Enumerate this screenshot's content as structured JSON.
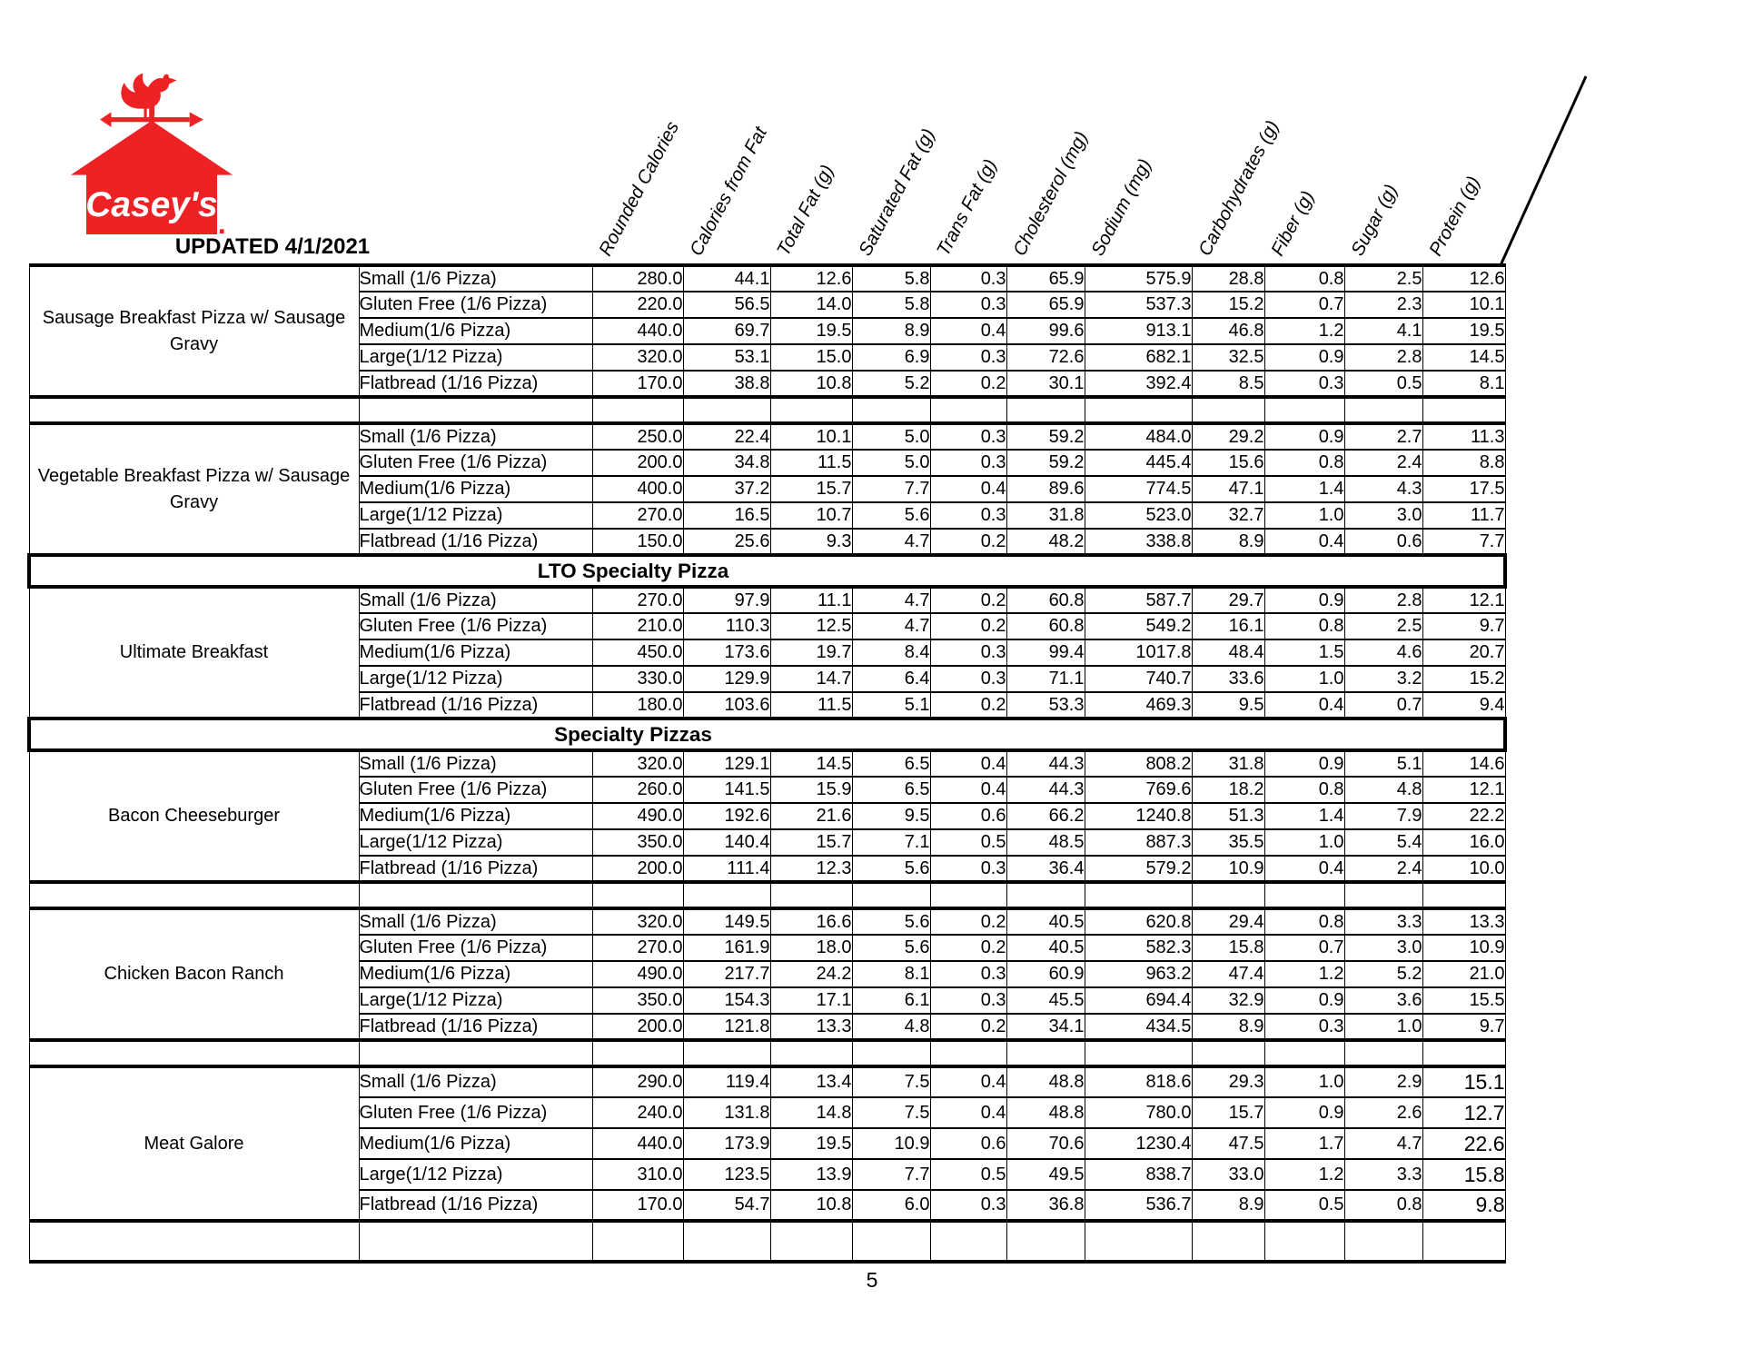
{
  "brand": {
    "name": "Casey's",
    "wordmark": "Casey's",
    "logo_color": "#EE2224"
  },
  "header": {
    "updated_label": "UPDATED 4/1/2021"
  },
  "footer": {
    "page_number": "5"
  },
  "table": {
    "columns": [
      "Rounded Calories",
      "Calories from Fat",
      "Total Fat (g)",
      "Saturated Fat (g)",
      "Trans Fat (g)",
      "Cholesterol (mg)",
      "Sodium (mg)",
      "Carbohydrates (g)",
      "Fiber (g)",
      "Sugar (g)",
      "Protein (g)"
    ],
    "sections": [
      {
        "type": "group",
        "name": "Sausage Breakfast Pizza w/ Sausage Gravy",
        "rows": [
          {
            "label": "Small (1/6 Pizza)",
            "values": [
              "280.0",
              "44.1",
              "12.6",
              "5.8",
              "0.3",
              "65.9",
              "575.9",
              "28.8",
              "0.8",
              "2.5",
              "12.6"
            ]
          },
          {
            "label": "Gluten Free (1/6 Pizza)",
            "values": [
              "220.0",
              "56.5",
              "14.0",
              "5.8",
              "0.3",
              "65.9",
              "537.3",
              "15.2",
              "0.7",
              "2.3",
              "10.1"
            ]
          },
          {
            "label": "Medium(1/6 Pizza)",
            "values": [
              "440.0",
              "69.7",
              "19.5",
              "8.9",
              "0.4",
              "99.6",
              "913.1",
              "46.8",
              "1.2",
              "4.1",
              "19.5"
            ]
          },
          {
            "label": "Large(1/12 Pizza)",
            "values": [
              "320.0",
              "53.1",
              "15.0",
              "6.9",
              "0.3",
              "72.6",
              "682.1",
              "32.5",
              "0.9",
              "2.8",
              "14.5"
            ]
          },
          {
            "label": "Flatbread (1/16 Pizza)",
            "values": [
              "170.0",
              "38.8",
              "10.8",
              "5.2",
              "0.2",
              "30.1",
              "392.4",
              "8.5",
              "0.3",
              "0.5",
              "8.1"
            ]
          }
        ]
      },
      {
        "type": "spacer"
      },
      {
        "type": "group",
        "name": "Vegetable Breakfast Pizza w/ Sausage Gravy",
        "rows": [
          {
            "label": "Small (1/6 Pizza)",
            "values": [
              "250.0",
              "22.4",
              "10.1",
              "5.0",
              "0.3",
              "59.2",
              "484.0",
              "29.2",
              "0.9",
              "2.7",
              "11.3"
            ]
          },
          {
            "label": "Gluten Free (1/6 Pizza)",
            "values": [
              "200.0",
              "34.8",
              "11.5",
              "5.0",
              "0.3",
              "59.2",
              "445.4",
              "15.6",
              "0.8",
              "2.4",
              "8.8"
            ]
          },
          {
            "label": "Medium(1/6 Pizza)",
            "values": [
              "400.0",
              "37.2",
              "15.7",
              "7.7",
              "0.4",
              "89.6",
              "774.5",
              "47.1",
              "1.4",
              "4.3",
              "17.5"
            ]
          },
          {
            "label": "Large(1/12 Pizza)",
            "values": [
              "270.0",
              "16.5",
              "10.7",
              "5.6",
              "0.3",
              "31.8",
              "523.0",
              "32.7",
              "1.0",
              "3.0",
              "11.7"
            ]
          },
          {
            "label": "Flatbread (1/16 Pizza)",
            "values": [
              "150.0",
              "25.6",
              "9.3",
              "4.7",
              "0.2",
              "48.2",
              "338.8",
              "8.9",
              "0.4",
              "0.6",
              "7.7"
            ]
          }
        ]
      },
      {
        "type": "section_header",
        "title": "LTO Specialty Pizza"
      },
      {
        "type": "group",
        "name": "Ultimate Breakfast",
        "rows": [
          {
            "label": "Small (1/6 Pizza)",
            "values": [
              "270.0",
              "97.9",
              "11.1",
              "4.7",
              "0.2",
              "60.8",
              "587.7",
              "29.7",
              "0.9",
              "2.8",
              "12.1"
            ]
          },
          {
            "label": "Gluten Free (1/6 Pizza)",
            "values": [
              "210.0",
              "110.3",
              "12.5",
              "4.7",
              "0.2",
              "60.8",
              "549.2",
              "16.1",
              "0.8",
              "2.5",
              "9.7"
            ]
          },
          {
            "label": "Medium(1/6 Pizza)",
            "values": [
              "450.0",
              "173.6",
              "19.7",
              "8.4",
              "0.3",
              "99.4",
              "1017.8",
              "48.4",
              "1.5",
              "4.6",
              "20.7"
            ]
          },
          {
            "label": "Large(1/12 Pizza)",
            "values": [
              "330.0",
              "129.9",
              "14.7",
              "6.4",
              "0.3",
              "71.1",
              "740.7",
              "33.6",
              "1.0",
              "3.2",
              "15.2"
            ]
          },
          {
            "label": "Flatbread (1/16 Pizza)",
            "values": [
              "180.0",
              "103.6",
              "11.5",
              "5.1",
              "0.2",
              "53.3",
              "469.3",
              "9.5",
              "0.4",
              "0.7",
              "9.4"
            ]
          }
        ]
      },
      {
        "type": "section_header",
        "title": "Specialty Pizzas"
      },
      {
        "type": "group",
        "name": "Bacon Cheeseburger",
        "rows": [
          {
            "label": "Small (1/6 Pizza)",
            "values": [
              "320.0",
              "129.1",
              "14.5",
              "6.5",
              "0.4",
              "44.3",
              "808.2",
              "31.8",
              "0.9",
              "5.1",
              "14.6"
            ]
          },
          {
            "label": "Gluten Free (1/6 Pizza)",
            "values": [
              "260.0",
              "141.5",
              "15.9",
              "6.5",
              "0.4",
              "44.3",
              "769.6",
              "18.2",
              "0.8",
              "4.8",
              "12.1"
            ]
          },
          {
            "label": "Medium(1/6 Pizza)",
            "values": [
              "490.0",
              "192.6",
              "21.6",
              "9.5",
              "0.6",
              "66.2",
              "1240.8",
              "51.3",
              "1.4",
              "7.9",
              "22.2"
            ]
          },
          {
            "label": "Large(1/12 Pizza)",
            "values": [
              "350.0",
              "140.4",
              "15.7",
              "7.1",
              "0.5",
              "48.5",
              "887.3",
              "35.5",
              "1.0",
              "5.4",
              "16.0"
            ]
          },
          {
            "label": "Flatbread (1/16 Pizza)",
            "values": [
              "200.0",
              "111.4",
              "12.3",
              "5.6",
              "0.3",
              "36.4",
              "579.2",
              "10.9",
              "0.4",
              "2.4",
              "10.0"
            ]
          }
        ]
      },
      {
        "type": "spacer"
      },
      {
        "type": "group",
        "name": "Chicken Bacon Ranch",
        "rows": [
          {
            "label": "Small (1/6 Pizza)",
            "values": [
              "320.0",
              "149.5",
              "16.6",
              "5.6",
              "0.2",
              "40.5",
              "620.8",
              "29.4",
              "0.8",
              "3.3",
              "13.3"
            ]
          },
          {
            "label": "Gluten Free (1/6 Pizza)",
            "values": [
              "270.0",
              "161.9",
              "18.0",
              "5.6",
              "0.2",
              "40.5",
              "582.3",
              "15.8",
              "0.7",
              "3.0",
              "10.9"
            ]
          },
          {
            "label": "Medium(1/6 Pizza)",
            "values": [
              "490.0",
              "217.7",
              "24.2",
              "8.1",
              "0.3",
              "60.9",
              "963.2",
              "47.4",
              "1.2",
              "5.2",
              "21.0"
            ]
          },
          {
            "label": "Large(1/12 Pizza)",
            "values": [
              "350.0",
              "154.3",
              "17.1",
              "6.1",
              "0.3",
              "45.5",
              "694.4",
              "32.9",
              "0.9",
              "3.6",
              "15.5"
            ]
          },
          {
            "label": "Flatbread (1/16 Pizza)",
            "values": [
              "200.0",
              "121.8",
              "13.3",
              "4.8",
              "0.2",
              "34.1",
              "434.5",
              "8.9",
              "0.3",
              "1.0",
              "9.7"
            ]
          }
        ]
      },
      {
        "type": "spacer"
      },
      {
        "type": "group",
        "name": "Meat Galore",
        "tall": true,
        "protein_large": true,
        "rows": [
          {
            "label": "Small (1/6 Pizza)",
            "values": [
              "290.0",
              "119.4",
              "13.4",
              "7.5",
              "0.4",
              "48.8",
              "818.6",
              "29.3",
              "1.0",
              "2.9",
              "15.1"
            ]
          },
          {
            "label": "Gluten Free (1/6 Pizza)",
            "values": [
              "240.0",
              "131.8",
              "14.8",
              "7.5",
              "0.4",
              "48.8",
              "780.0",
              "15.7",
              "0.9",
              "2.6",
              "12.7"
            ]
          },
          {
            "label": "Medium(1/6 Pizza)",
            "values": [
              "440.0",
              "173.9",
              "19.5",
              "10.9",
              "0.6",
              "70.6",
              "1230.4",
              "47.5",
              "1.7",
              "4.7",
              "22.6"
            ]
          },
          {
            "label": "Large(1/12 Pizza)",
            "values": [
              "310.0",
              "123.5",
              "13.9",
              "7.7",
              "0.5",
              "49.5",
              "838.7",
              "33.0",
              "1.2",
              "3.3",
              "15.8"
            ]
          },
          {
            "label": "Flatbread (1/16 Pizza)",
            "values": [
              "170.0",
              "54.7",
              "10.8",
              "6.0",
              "0.3",
              "36.8",
              "536.7",
              "8.9",
              "0.5",
              "0.8",
              "9.8"
            ]
          }
        ]
      },
      {
        "type": "spacer_open"
      }
    ]
  }
}
